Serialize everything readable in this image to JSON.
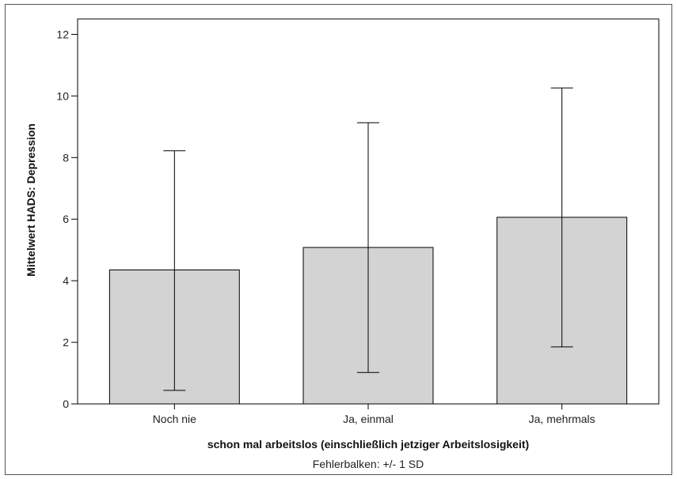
{
  "chart_data": {
    "type": "bar",
    "categories": [
      "Noch nie",
      "Ja, einmal",
      "Ja, mehrmals"
    ],
    "values": [
      4.35,
      5.08,
      6.06
    ],
    "error_lower": [
      0.44,
      1.02,
      1.85
    ],
    "error_upper": [
      8.22,
      9.13,
      10.26
    ],
    "xlabel": "schon mal arbeitslos (einschließlich jetziger Arbeitslosigkeit)",
    "ylabel": "Mittelwert HADS: Depression",
    "yticks": [
      0,
      2,
      4,
      6,
      8,
      10,
      12
    ],
    "ylim": [
      0,
      12.5
    ],
    "footnote": "Fehlerbalken: +/- 1 SD",
    "grid": false,
    "colors": {
      "bar_fill": "#d3d3d3",
      "bar_stroke": "#000000",
      "axis": "#000000"
    }
  }
}
